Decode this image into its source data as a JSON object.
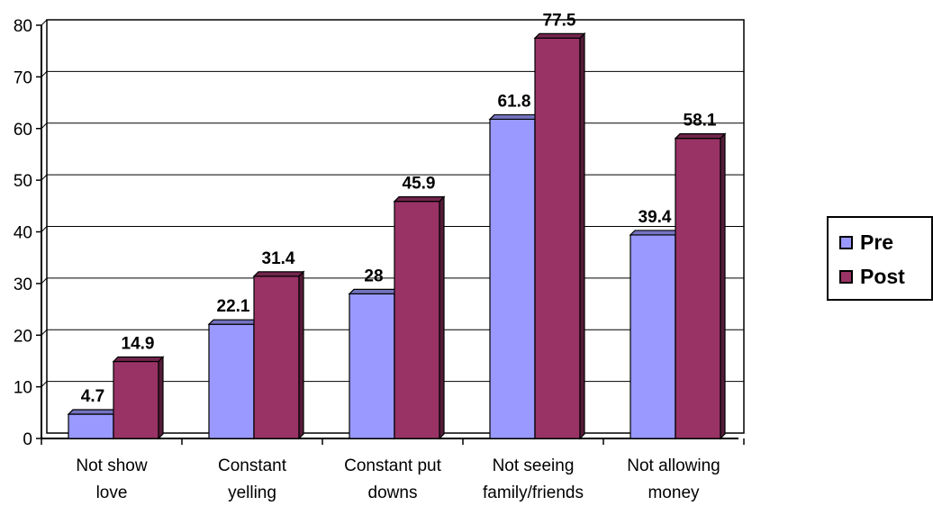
{
  "chart_data": {
    "type": "bar",
    "title": "",
    "xlabel": "",
    "ylabel": "",
    "ylim": [
      0,
      80
    ],
    "yticks": [
      0,
      10,
      20,
      30,
      40,
      50,
      60,
      70,
      80
    ],
    "grid": true,
    "legend_position": "right",
    "categories": [
      [
        "Not show",
        "love"
      ],
      [
        "Constant",
        "yelling"
      ],
      [
        "Constant put",
        "downs"
      ],
      [
        "Not seeing",
        "family/friends"
      ],
      [
        "Not allowing",
        "money"
      ]
    ],
    "series": [
      {
        "name": "Pre",
        "color": "#9999ff",
        "values": [
          4.7,
          22.1,
          28,
          61.8,
          39.4
        ]
      },
      {
        "name": "Post",
        "color": "#993366",
        "values": [
          14.9,
          31.4,
          45.9,
          77.5,
          58.1
        ]
      }
    ]
  }
}
